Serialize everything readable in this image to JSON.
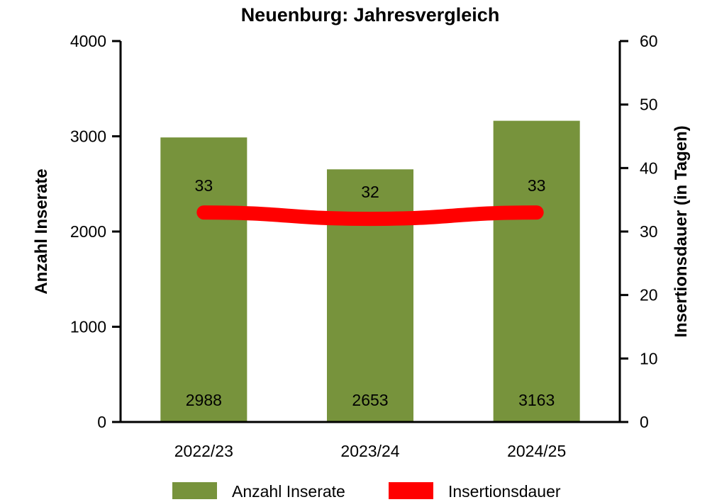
{
  "chart_data": {
    "type": "bar",
    "title": "Neuenburg: Jahresvergleich",
    "categories": [
      "2022/23",
      "2023/24",
      "2024/25"
    ],
    "series": [
      {
        "name": "Anzahl Inserate",
        "type": "bar",
        "axis": "left",
        "color": "#77933c",
        "values": [
          2988,
          2653,
          3163
        ]
      },
      {
        "name": "Insertionsdauer",
        "type": "line",
        "axis": "right",
        "color": "#ff0000",
        "values": [
          33,
          32,
          33
        ]
      }
    ],
    "ylabel": "Anzahl Inserate",
    "ylim": [
      0,
      4000
    ],
    "yticks": [
      "0",
      "1000",
      "2000",
      "3000",
      "4000"
    ],
    "y2label": "Insertionsdauer (in Tagen)",
    "y2lim": [
      0,
      60
    ],
    "y2ticks": [
      "0",
      "10",
      "20",
      "30",
      "40",
      "50",
      "60"
    ],
    "grid": false,
    "legend": "bottom"
  }
}
